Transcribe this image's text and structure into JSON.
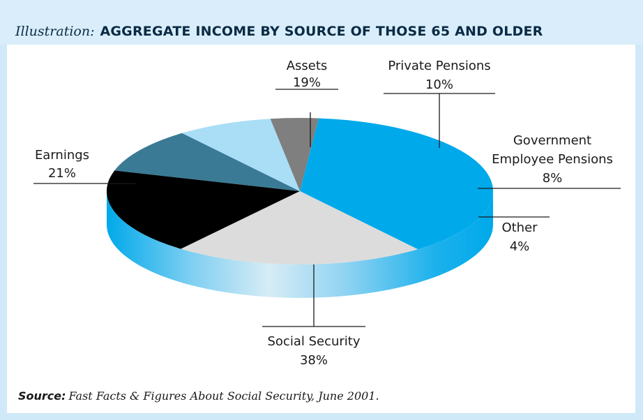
{
  "header": {
    "lead": "Illustration:",
    "title": "AGGREGATE INCOME BY SOURCE OF THOSE 65 AND OLDER"
  },
  "footer": {
    "source_label": "Source:",
    "source_text": "Fast Facts & Figures About Social Security, June 2001."
  },
  "colors": {
    "frame": "#cfe9f8",
    "social_security": "#00a9ea",
    "earnings": "#dcdcdc",
    "assets": "#000000",
    "private_pensions": "#3a7a94",
    "gov_pensions": "#a9def6",
    "other": "#7f7f7f"
  },
  "chart_data": {
    "type": "pie",
    "title": "AGGREGATE INCOME BY SOURCE OF THOSE 65 AND OLDER",
    "slices": [
      {
        "label": "Assets",
        "value": 19,
        "value_label": "19%",
        "color": "#000000"
      },
      {
        "label": "Private Pensions",
        "value": 10,
        "value_label": "10%",
        "color": "#3a7a94"
      },
      {
        "label": "Government Employee Pensions",
        "label_lines": [
          "Government",
          "Employee Pensions"
        ],
        "value": 8,
        "value_label": "8%",
        "color": "#a9def6"
      },
      {
        "label": "Other",
        "value": 4,
        "value_label": "4%",
        "color": "#7f7f7f"
      },
      {
        "label": "Social Security",
        "value": 38,
        "value_label": "38%",
        "color": "#00a9ea"
      },
      {
        "label": "Earnings",
        "value": 21,
        "value_label": "21%",
        "color": "#dcdcdc"
      }
    ],
    "style": "3d-tilted"
  }
}
